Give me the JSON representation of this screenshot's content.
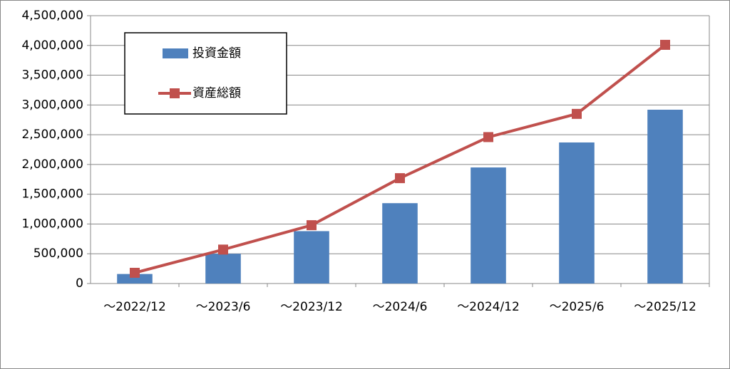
{
  "chart_data": {
    "type": "bar",
    "categories": [
      "～2022/12",
      "～2023/6",
      "～2023/12",
      "～2024/6",
      "～2024/12",
      "～2025/6",
      "～2025/12"
    ],
    "series": [
      {
        "name": "投資金額",
        "type": "bar",
        "color": "#4f81bd",
        "values": [
          160000,
          500000,
          880000,
          1350000,
          1950000,
          2370000,
          2920000
        ]
      },
      {
        "name": "資産総額",
        "type": "line",
        "color": "#c0504d",
        "values": [
          180000,
          570000,
          980000,
          1770000,
          2460000,
          2850000,
          4010000
        ]
      }
    ],
    "ylim": [
      0,
      4500000
    ],
    "yticks": [
      0,
      {
        "value": 500000,
        "label": "500,000"
      },
      {
        "value": 1000000,
        "label": "1,000,000"
      },
      {
        "value": 1500000,
        "label": "1,500,000"
      },
      {
        "value": 2000000,
        "label": "2,000,000"
      },
      {
        "value": 2500000,
        "label": "2,500,000"
      },
      {
        "value": 3000000,
        "label": "3,000,000"
      },
      {
        "value": 3500000,
        "label": "3,500,000"
      },
      {
        "value": 4000000,
        "label": "4,000,000"
      },
      {
        "value": 4500000,
        "label": "4,500,000"
      }
    ],
    "grid": true,
    "legend": "upper-left"
  }
}
